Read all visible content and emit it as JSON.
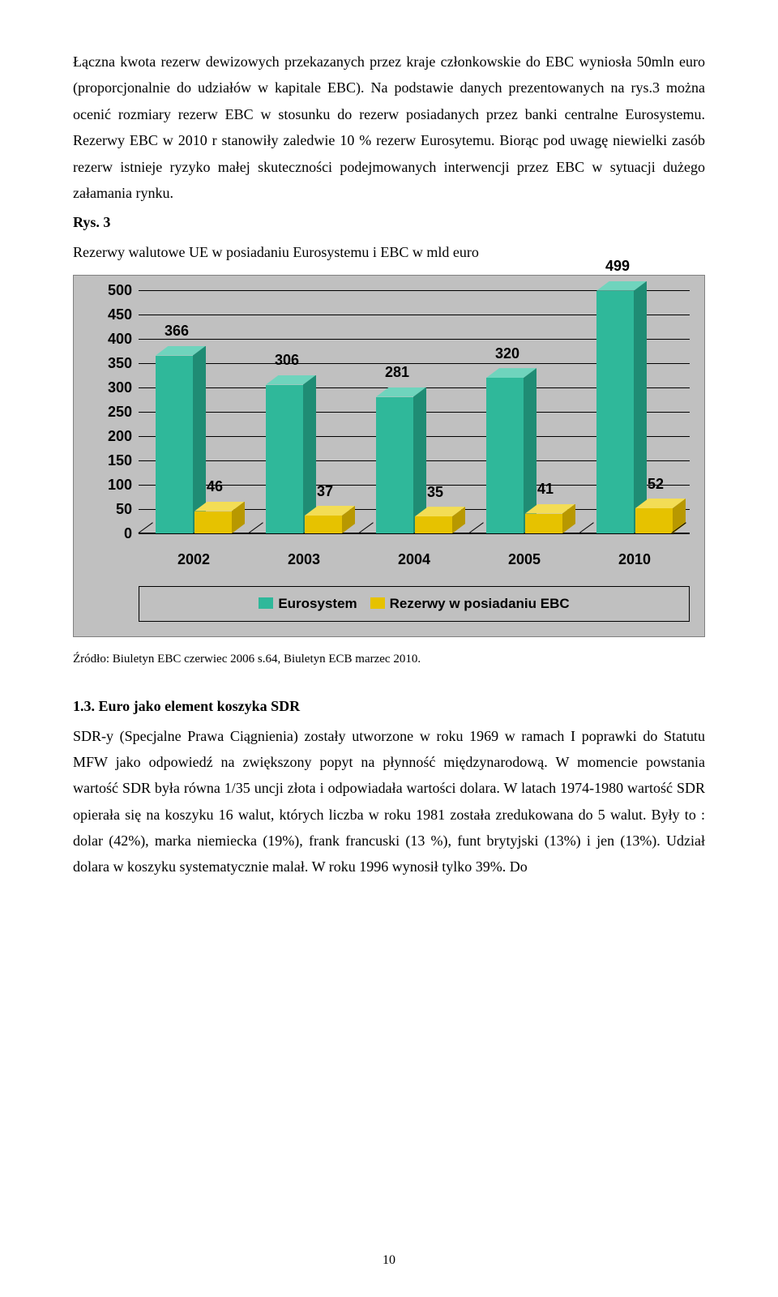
{
  "para1": "Łączna kwota rezerw dewizowych przekazanych przez kraje członkowskie do EBC wyniosła 50mln euro (proporcjonalnie do udziałów w kapitale EBC). Na podstawie danych prezentowanych na rys.3  można ocenić rozmiary rezerw EBC w stosunku do rezerw posiadanych przez banki centralne Eurosystemu.  Rezerwy EBC w 2010 r stanowiły zaledwie 10 % rezerw Eurosytemu. Biorąc pod uwagę  niewielki zasób rezerw istnieje ryzyko małej skuteczności podejmowanych interwencji przez EBC w sytuacji dużego załamania rynku.",
  "rys_label": "Rys. 3",
  "chart_caption": "Rezerwy walutowe UE w posiadaniu Eurosystemu i EBC w mld euro",
  "chart": {
    "categories": [
      "2002",
      "2003",
      "2004",
      "2005",
      "2010"
    ],
    "series": [
      {
        "name": "Eurosystem",
        "values": [
          366,
          306,
          281,
          320,
          499
        ],
        "front": "#2fb89a",
        "top": "#6fd4bd",
        "side": "#1f8c74"
      },
      {
        "name": "Rezerwy w posiadaniu EBC",
        "values": [
          46,
          37,
          35,
          41,
          52
        ],
        "front": "#e6c200",
        "top": "#f3dd55",
        "side": "#b89800"
      }
    ],
    "ymax": 500,
    "ytick_step": 50,
    "yticks": [
      0,
      50,
      100,
      150,
      200,
      250,
      300,
      350,
      400,
      450,
      500
    ],
    "background": "#c0c0c0",
    "grid_color": "#000000"
  },
  "legend_items": [
    "Eurosystem",
    "Rezerwy w posiadaniu EBC"
  ],
  "source": "Źródło: Biuletyn EBC czerwiec 2006 s.64, Biuletyn ECB marzec 2010.",
  "section_heading": "1.3. Euro jako element  koszyka SDR",
  "para2": "SDR-y (Specjalne Prawa Ciągnienia) zostały utworzone  w roku 1969 w ramach I poprawki do Statutu MFW jako odpowiedź na zwiększony popyt na płynność międzynarodową. W momencie powstania wartość SDR była równa 1/35 uncji złota i odpowiadała wartości dolara. W latach 1974-1980  wartość SDR opierała się na koszyku 16 walut, których liczba  w roku 1981 została zredukowana do 5 walut. Były to : dolar (42%), marka niemiecka (19%), frank francuski (13 %), funt brytyjski (13%) i jen (13%).  Udział dolara w koszyku  systematycznie  malał.  W  roku  1996  wynosił  tylko  39%.  Do",
  "page_number": "10"
}
